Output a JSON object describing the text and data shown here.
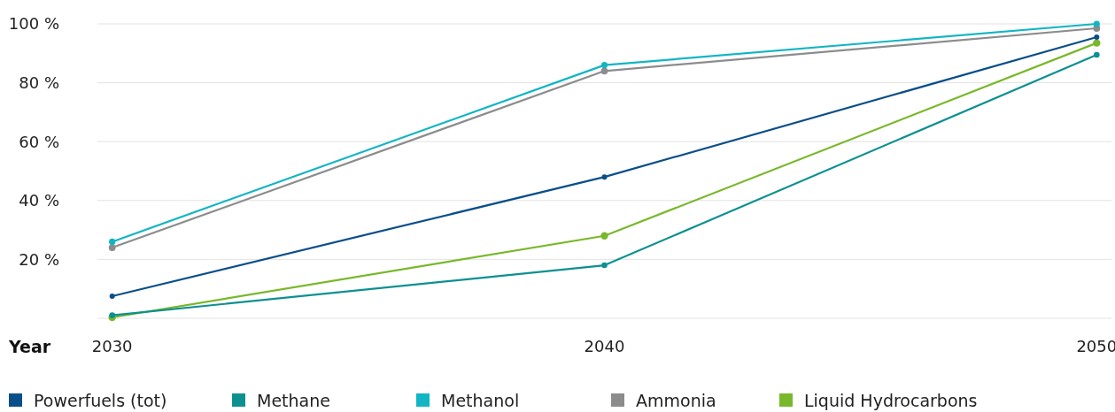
{
  "chart_data": {
    "type": "line",
    "xlabel": "Year",
    "categories": [
      "2030",
      "2040",
      "2050"
    ],
    "series": [
      {
        "name": "Powerfuels (tot)",
        "color": "#0a4f8a",
        "values": [
          7.5,
          48,
          95.5
        ]
      },
      {
        "name": "Methane",
        "color": "#0d9090",
        "values": [
          1,
          18,
          89.5
        ]
      },
      {
        "name": "Methanol",
        "color": "#12b5c4",
        "values": [
          26,
          86,
          100
        ]
      },
      {
        "name": "Ammonia",
        "color": "#8c8c8c",
        "values": [
          24,
          84,
          98.5
        ]
      },
      {
        "name": "Liquid Hydrocarbons",
        "color": "#78b82a",
        "values": [
          0.3,
          28,
          93.5
        ]
      }
    ],
    "ylim": [
      0,
      100
    ],
    "yticks": [
      {
        "value": 0,
        "label": null
      },
      {
        "value": 20,
        "label": "20 %"
      },
      {
        "value": 40,
        "label": "40 %"
      },
      {
        "value": 60,
        "label": "60 %"
      },
      {
        "value": 80,
        "label": "80 %"
      },
      {
        "value": 100,
        "label": "100 %"
      }
    ],
    "grid": "y",
    "legend": "bottom",
    "marker": "circle",
    "line_style": "solid"
  }
}
